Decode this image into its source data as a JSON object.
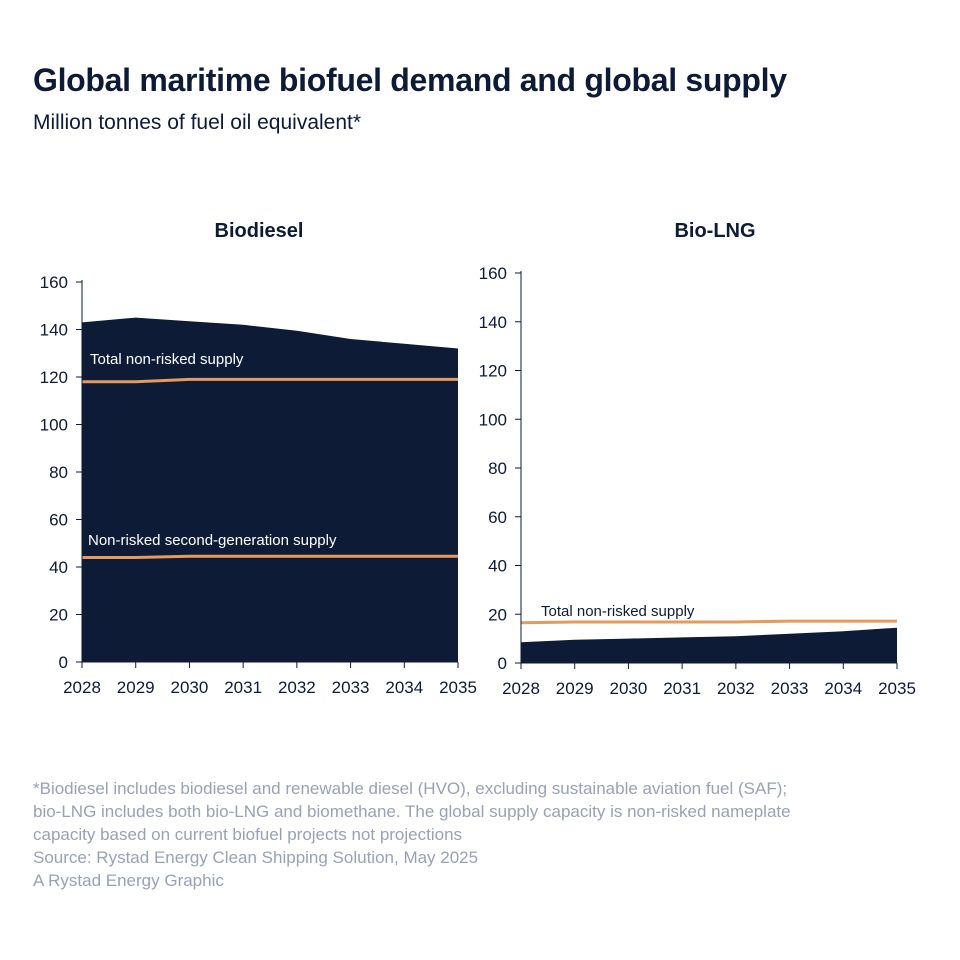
{
  "header": {
    "title": "Global maritime biofuel demand and global supply",
    "subtitle": "Million tonnes of fuel oil equivalent*"
  },
  "chart_data": [
    {
      "type": "area",
      "title": "Biodiesel",
      "x": [
        "2028",
        "2029",
        "2030",
        "2031",
        "2032",
        "2033",
        "2034",
        "2035"
      ],
      "ylim": [
        0,
        160
      ],
      "yticks": [
        0,
        20,
        40,
        60,
        80,
        100,
        120,
        140,
        160
      ],
      "area": [
        143,
        145,
        143.5,
        142,
        139.5,
        136,
        134,
        132
      ],
      "lines": [
        {
          "name": "Total non-risked supply",
          "values": [
            118,
            118,
            119,
            119,
            119,
            119,
            119,
            119
          ]
        },
        {
          "name": "Non-risked second-generation supply",
          "values": [
            44,
            44,
            44.5,
            44.5,
            44.5,
            44.5,
            44.5,
            44.5
          ]
        }
      ],
      "grid": false,
      "area_color": "#0d1b36",
      "line_color": "#e69a5c"
    },
    {
      "type": "area",
      "title": "Bio-LNG",
      "x": [
        "2028",
        "2029",
        "2030",
        "2031",
        "2032",
        "2033",
        "2034",
        "2035"
      ],
      "ylim": [
        0,
        160
      ],
      "yticks": [
        0,
        20,
        40,
        60,
        80,
        100,
        120,
        140,
        160
      ],
      "area": [
        8.5,
        9.5,
        10,
        10.5,
        11,
        12,
        13,
        14.5
      ],
      "lines": [
        {
          "name": "Total non-risked supply",
          "values": [
            16.5,
            16.8,
            16.8,
            16.8,
            16.8,
            17.2,
            17.2,
            17.2
          ]
        }
      ],
      "grid": false,
      "area_color": "#0d1b36",
      "line_color": "#e69a5c"
    }
  ],
  "footnote": {
    "lines": [
      "*Biodiesel includes biodiesel and renewable diesel (HVO), excluding sustainable aviation fuel (SAF);",
      "bio-LNG includes both bio-LNG and biomethane. The global supply capacity is non-risked nameplate",
      "capacity based on current biofuel projects not projections",
      "Source: Rystad Energy Clean Shipping Solution, May 2025",
      "A Rystad Energy Graphic"
    ]
  }
}
